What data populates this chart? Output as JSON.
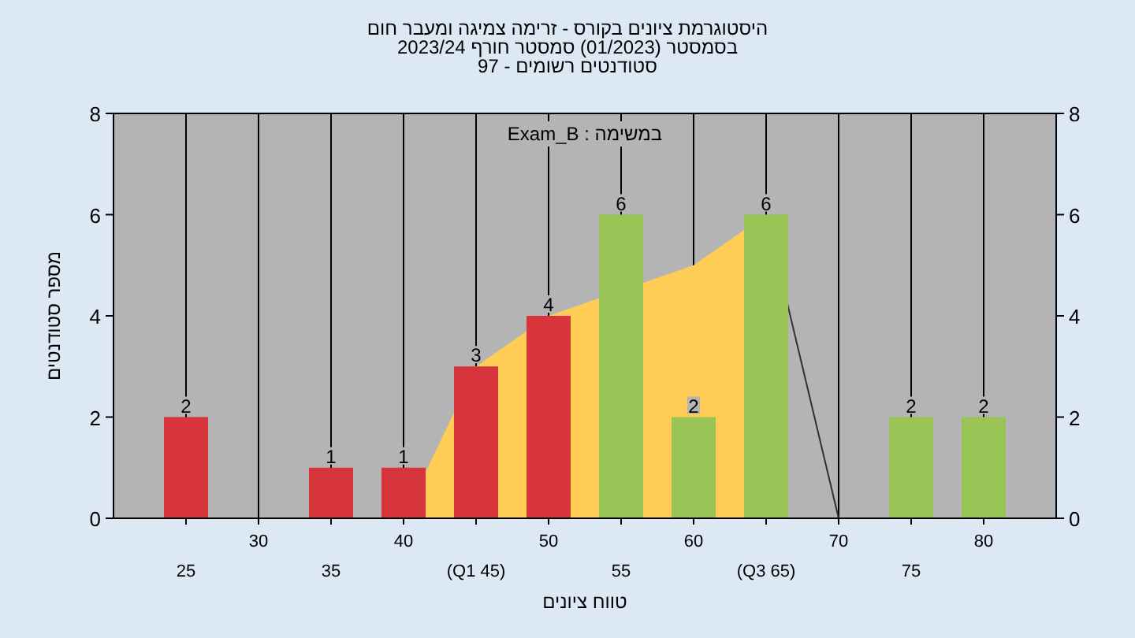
{
  "chart_data": {
    "type": "bar",
    "title": "היסטוגרמת ציונים בקורס - זרימה צמיגה ומעבר חום",
    "subtitle": "בסמסטר (01/2023) סמסטר חורף 2023/24",
    "annotations": [
      "סטודנטים רשומים - 97",
      "במשימה : Exam_B"
    ],
    "xlabel": "טווח ציונים",
    "ylabel": "מספר סטודנטים",
    "categories": [
      "25",
      "30",
      "35",
      "40",
      "(Q1 45)",
      "50",
      "55",
      "60",
      "(Q3 65)",
      "70",
      "75",
      "80"
    ],
    "series": [
      {
        "type": "area",
        "color": "#ffcc55",
        "values": [
          null,
          null,
          null,
          0,
          3,
          4,
          null,
          5,
          6,
          null,
          null,
          null
        ]
      },
      {
        "type": "line",
        "color": "#303030",
        "values": [
          null,
          null,
          null,
          null,
          null,
          null,
          null,
          null,
          6,
          0,
          null,
          null
        ]
      },
      {
        "colors": [
          "#d8343c",
          "#d8343c",
          "#d8343c",
          "#d8343c",
          "#d8343c",
          "#d8343c",
          "#98c455",
          "#98c455",
          "#98c455",
          "#98c455",
          "#98c455",
          "#98c455"
        ],
        "values": [
          2,
          0,
          1,
          1,
          3,
          4,
          6,
          2,
          6,
          0,
          2,
          2
        ],
        "value_labels": [
          "2",
          null,
          "1",
          "1",
          "3",
          "4",
          "6",
          "2",
          "6",
          null,
          "2",
          "2"
        ]
      }
    ],
    "ylim": [
      0,
      8
    ],
    "yticks": [
      0,
      2,
      4,
      6,
      8
    ],
    "y2lim": [
      0,
      8
    ],
    "y2ticks": [
      0,
      2,
      4,
      6,
      8
    ],
    "grid": "x"
  }
}
